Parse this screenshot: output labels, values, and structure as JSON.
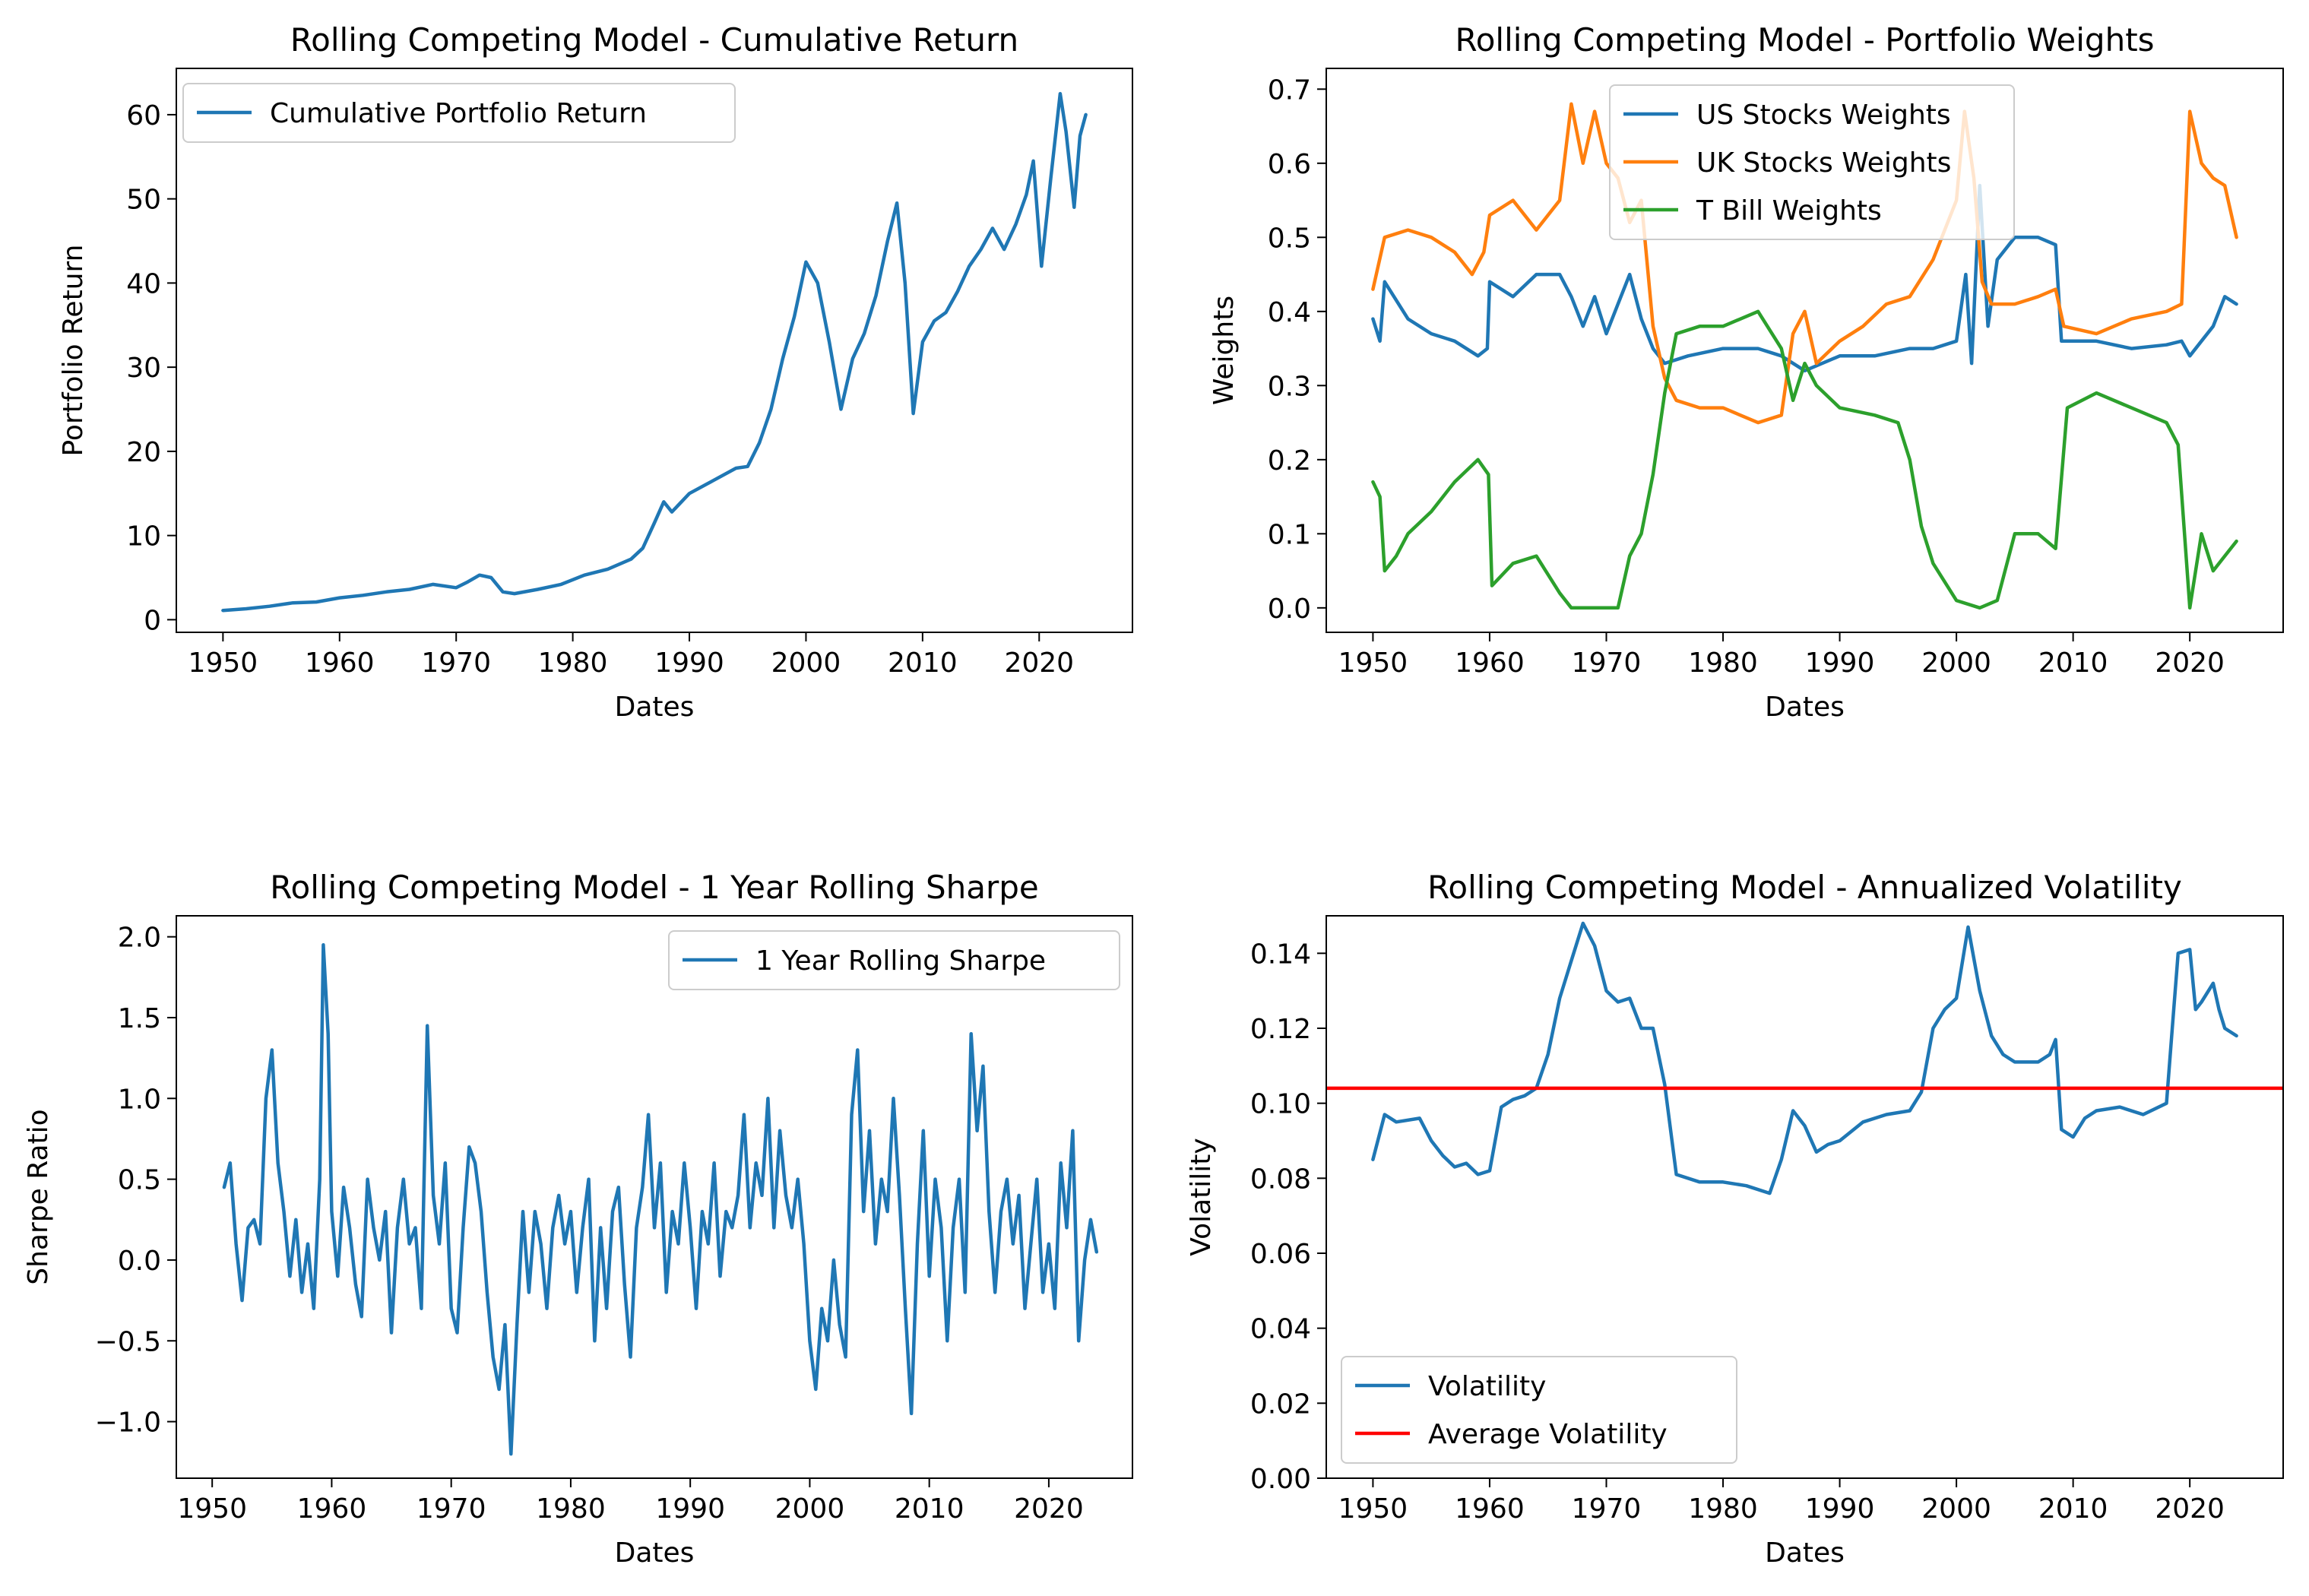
{
  "chart_data": [
    {
      "id": "tl",
      "type": "line",
      "title": "Rolling Competing Model - Cumulative Return",
      "xlabel": "Dates",
      "ylabel": "Portfolio Return",
      "xlim": [
        1946,
        2028
      ],
      "ylim": [
        -1.5,
        65.5
      ],
      "xticks": [
        1950,
        1960,
        1970,
        1980,
        1990,
        2000,
        2010,
        2020
      ],
      "yticks": [
        0,
        10,
        20,
        30,
        40,
        50,
        60
      ],
      "legend": "upper-left",
      "series": [
        {
          "name": "Cumulative Portfolio Return",
          "color": "#1f77b4",
          "x": [
            1950,
            1952,
            1954,
            1956,
            1958,
            1960,
            1962,
            1964,
            1966,
            1968,
            1970,
            1971,
            1972,
            1973,
            1974,
            1975,
            1977,
            1979,
            1981,
            1983,
            1985,
            1986,
            1987,
            1987.8,
            1988.5,
            1990,
            1992,
            1994,
            1995,
            1996,
            1997,
            1998,
            1999,
            2000,
            2001,
            2002,
            2003,
            2004,
            2005,
            2006,
            2007,
            2007.8,
            2008.5,
            2009.2,
            2010,
            2011,
            2012,
            2013,
            2014,
            2015,
            2016,
            2017,
            2018,
            2018.9,
            2019.5,
            2020.2,
            2021,
            2021.8,
            2022.3,
            2023,
            2023.5,
            2024
          ],
          "y": [
            1.1,
            1.3,
            1.6,
            2.0,
            2.1,
            2.6,
            2.9,
            3.3,
            3.6,
            4.2,
            3.8,
            4.5,
            5.3,
            5.0,
            3.3,
            3.1,
            3.6,
            4.2,
            5.3,
            6.0,
            7.2,
            8.5,
            11.5,
            14.0,
            12.8,
            15.0,
            16.5,
            18.0,
            18.2,
            21.0,
            25.0,
            31.0,
            36.0,
            42.5,
            40.0,
            33.0,
            25.0,
            31.0,
            34.0,
            38.5,
            45.0,
            49.5,
            40.0,
            24.5,
            33.0,
            35.5,
            36.5,
            39.0,
            42.0,
            44.0,
            46.5,
            44.0,
            47.0,
            50.5,
            54.5,
            42.0,
            52.5,
            62.5,
            58.0,
            49.0,
            57.5,
            60.0
          ]
        }
      ]
    },
    {
      "id": "tr",
      "type": "line",
      "title": "Rolling Competing Model - Portfolio Weights",
      "xlabel": "Dates",
      "ylabel": "Weights",
      "xlim": [
        1946,
        2028
      ],
      "ylim": [
        -0.033,
        0.728
      ],
      "xticks": [
        1950,
        1960,
        1970,
        1980,
        1990,
        2000,
        2010,
        2020
      ],
      "yticks": [
        0.0,
        0.1,
        0.2,
        0.3,
        0.4,
        0.5,
        0.6,
        0.7
      ],
      "ytickfmt": 1,
      "legend": "upper-center",
      "series": [
        {
          "name": "US Stocks Weights",
          "color": "#1f77b4",
          "x": [
            1950,
            1950.6,
            1951,
            1953,
            1955,
            1957,
            1959,
            1959.8,
            1960,
            1962,
            1964,
            1966,
            1967,
            1968,
            1969,
            1970,
            1971,
            1972,
            1973,
            1974,
            1975,
            1977,
            1980,
            1983,
            1985,
            1987,
            1990,
            1993,
            1996,
            1998,
            2000,
            2000.8,
            2001.3,
            2002,
            2002.7,
            2003.5,
            2005,
            2007,
            2008.5,
            2009,
            2012,
            2015,
            2018,
            2019.3,
            2020,
            2021,
            2022,
            2023,
            2024
          ],
          "y": [
            0.39,
            0.36,
            0.44,
            0.39,
            0.37,
            0.36,
            0.34,
            0.35,
            0.44,
            0.42,
            0.45,
            0.45,
            0.42,
            0.38,
            0.42,
            0.37,
            0.41,
            0.45,
            0.39,
            0.35,
            0.33,
            0.34,
            0.35,
            0.35,
            0.34,
            0.32,
            0.34,
            0.34,
            0.35,
            0.35,
            0.36,
            0.45,
            0.33,
            0.57,
            0.38,
            0.47,
            0.5,
            0.5,
            0.49,
            0.36,
            0.36,
            0.35,
            0.355,
            0.36,
            0.34,
            0.36,
            0.38,
            0.42,
            0.41
          ]
        },
        {
          "name": "UK Stocks Weights",
          "color": "#ff7f0e",
          "x": [
            1950,
            1951,
            1953,
            1955,
            1957,
            1958.5,
            1959.5,
            1960,
            1962,
            1964,
            1966,
            1967,
            1968,
            1969,
            1970,
            1971,
            1972,
            1973,
            1974,
            1975,
            1976,
            1978,
            1980,
            1983,
            1985,
            1986,
            1987,
            1988,
            1990,
            1992,
            1994,
            1996,
            1998,
            2000,
            2000.7,
            2001.5,
            2002.2,
            2003,
            2005,
            2007,
            2008.5,
            2009.2,
            2012,
            2015,
            2018,
            2019.3,
            2020,
            2021,
            2022,
            2023,
            2024
          ],
          "y": [
            0.43,
            0.5,
            0.51,
            0.5,
            0.48,
            0.45,
            0.48,
            0.53,
            0.55,
            0.51,
            0.55,
            0.68,
            0.6,
            0.67,
            0.6,
            0.58,
            0.52,
            0.55,
            0.38,
            0.31,
            0.28,
            0.27,
            0.27,
            0.25,
            0.26,
            0.37,
            0.4,
            0.33,
            0.36,
            0.38,
            0.41,
            0.42,
            0.47,
            0.55,
            0.67,
            0.58,
            0.44,
            0.41,
            0.41,
            0.42,
            0.43,
            0.38,
            0.37,
            0.39,
            0.4,
            0.41,
            0.67,
            0.6,
            0.58,
            0.57,
            0.5
          ]
        },
        {
          "name": " T Bill Weights",
          "color": "#2ca02c",
          "x": [
            1950,
            1950.6,
            1951,
            1952,
            1953,
            1955,
            1957,
            1959,
            1959.9,
            1960.2,
            1962,
            1964,
            1966,
            1967,
            1969,
            1971,
            1972,
            1973,
            1974,
            1975,
            1976,
            1978,
            1980,
            1983,
            1985,
            1986,
            1987,
            1988,
            1990,
            1993,
            1995,
            1996,
            1997,
            1998,
            2000,
            2002,
            2003.5,
            2005,
            2007,
            2008.5,
            2009.5,
            2012,
            2015,
            2018,
            2019,
            2020,
            2021,
            2022,
            2023,
            2024
          ],
          "y": [
            0.17,
            0.15,
            0.05,
            0.07,
            0.1,
            0.13,
            0.17,
            0.2,
            0.18,
            0.03,
            0.06,
            0.07,
            0.02,
            0.0,
            0.0,
            0.0,
            0.07,
            0.1,
            0.18,
            0.29,
            0.37,
            0.38,
            0.38,
            0.4,
            0.35,
            0.28,
            0.33,
            0.3,
            0.27,
            0.26,
            0.25,
            0.2,
            0.11,
            0.06,
            0.01,
            0.0,
            0.01,
            0.1,
            0.1,
            0.08,
            0.27,
            0.29,
            0.27,
            0.25,
            0.22,
            0.0,
            0.1,
            0.05,
            0.07,
            0.09
          ]
        }
      ]
    },
    {
      "id": "bl",
      "type": "line",
      "title": "Rolling Competing Model - 1 Year Rolling Sharpe",
      "xlabel": "Dates",
      "ylabel": "Sharpe Ratio",
      "xlim": [
        1947,
        2027
      ],
      "ylim": [
        -1.35,
        2.13
      ],
      "xticks": [
        1950,
        1960,
        1970,
        1980,
        1990,
        2000,
        2010,
        2020
      ],
      "yticks": [
        -1.0,
        -0.5,
        0.0,
        0.5,
        1.0,
        1.5,
        2.0
      ],
      "ytickfmt": 1,
      "legend": "upper-right",
      "series": [
        {
          "name": "1 Year Rolling Sharpe",
          "color": "#1f77b4",
          "x": [
            1951,
            1951.5,
            1952,
            1952.5,
            1953,
            1953.5,
            1954,
            1954.5,
            1955,
            1955.5,
            1956,
            1956.5,
            1957,
            1957.5,
            1958,
            1958.5,
            1959,
            1959.3,
            1959.7,
            1960,
            1960.5,
            1961,
            1961.5,
            1962,
            1962.5,
            1963,
            1963.5,
            1964,
            1964.5,
            1965,
            1965.5,
            1966,
            1966.5,
            1967,
            1967.5,
            1968,
            1968.5,
            1969,
            1969.5,
            1970,
            1970.5,
            1971,
            1971.5,
            1972,
            1972.5,
            1973,
            1973.5,
            1974,
            1974.5,
            1975,
            1975.5,
            1976,
            1976.5,
            1977,
            1977.5,
            1978,
            1978.5,
            1979,
            1979.5,
            1980,
            1980.5,
            1981,
            1981.5,
            1982,
            1982.5,
            1983,
            1983.5,
            1984,
            1984.5,
            1985,
            1985.5,
            1986,
            1986.5,
            1987,
            1987.5,
            1988,
            1988.5,
            1989,
            1989.5,
            1990,
            1990.5,
            1991,
            1991.5,
            1992,
            1992.5,
            1993,
            1993.5,
            1994,
            1994.5,
            1995,
            1995.5,
            1996,
            1996.5,
            1997,
            1997.5,
            1998,
            1998.5,
            1999,
            1999.5,
            2000,
            2000.5,
            2001,
            2001.5,
            2002,
            2002.5,
            2003,
            2003.5,
            2004,
            2004.5,
            2005,
            2005.5,
            2006,
            2006.5,
            2007,
            2007.5,
            2008,
            2008.5,
            2009,
            2009.5,
            2010,
            2010.5,
            2011,
            2011.5,
            2012,
            2012.5,
            2013,
            2013.5,
            2014,
            2014.5,
            2015,
            2015.5,
            2016,
            2016.5,
            2017,
            2017.5,
            2018,
            2018.5,
            2019,
            2019.5,
            2020,
            2020.5,
            2021,
            2021.5,
            2022,
            2022.5,
            2023,
            2023.5,
            2024
          ],
          "y": [
            0.45,
            0.6,
            0.1,
            -0.25,
            0.2,
            0.25,
            0.1,
            1.0,
            1.3,
            0.6,
            0.3,
            -0.1,
            0.25,
            -0.2,
            0.1,
            -0.3,
            0.5,
            1.95,
            1.4,
            0.3,
            -0.1,
            0.45,
            0.2,
            -0.15,
            -0.35,
            0.5,
            0.2,
            0.0,
            0.3,
            -0.45,
            0.2,
            0.5,
            0.1,
            0.2,
            -0.3,
            1.45,
            0.4,
            0.1,
            0.6,
            -0.3,
            -0.45,
            0.2,
            0.7,
            0.6,
            0.3,
            -0.2,
            -0.6,
            -0.8,
            -0.4,
            -1.2,
            -0.4,
            0.3,
            -0.2,
            0.3,
            0.1,
            -0.3,
            0.2,
            0.4,
            0.1,
            0.3,
            -0.2,
            0.2,
            0.5,
            -0.5,
            0.2,
            -0.3,
            0.3,
            0.45,
            -0.15,
            -0.6,
            0.2,
            0.45,
            0.9,
            0.2,
            0.6,
            -0.2,
            0.3,
            0.1,
            0.6,
            0.2,
            -0.3,
            0.3,
            0.1,
            0.6,
            -0.1,
            0.3,
            0.2,
            0.4,
            0.9,
            0.2,
            0.6,
            0.4,
            1.0,
            0.2,
            0.8,
            0.4,
            0.2,
            0.5,
            0.1,
            -0.5,
            -0.8,
            -0.3,
            -0.5,
            0.0,
            -0.4,
            -0.6,
            0.9,
            1.3,
            0.3,
            0.8,
            0.1,
            0.5,
            0.3,
            1.0,
            0.4,
            -0.3,
            -0.95,
            0.1,
            0.8,
            -0.1,
            0.5,
            0.2,
            -0.5,
            0.2,
            0.5,
            -0.2,
            1.4,
            0.8,
            1.2,
            0.3,
            -0.2,
            0.3,
            0.5,
            0.1,
            0.4,
            -0.3,
            0.1,
            0.5,
            -0.2,
            0.1,
            -0.3,
            0.6,
            0.2,
            0.8,
            -0.5,
            0.0,
            0.25,
            0.05
          ]
        }
      ]
    },
    {
      "id": "br",
      "type": "line",
      "title": "Rolling Competing Model - Annualized Volatility",
      "xlabel": "Dates",
      "ylabel": "Volatility",
      "xlim": [
        1946,
        2028
      ],
      "ylim": [
        0.0,
        0.15
      ],
      "xticks": [
        1950,
        1960,
        1970,
        1980,
        1990,
        2000,
        2010,
        2020
      ],
      "yticks": [
        0.0,
        0.02,
        0.04,
        0.06,
        0.08,
        0.1,
        0.12,
        0.14
      ],
      "ytickfmt": 2,
      "legend": "lower-left",
      "series": [
        {
          "name": "Volatility",
          "color": "#1f77b4",
          "x": [
            1950,
            1951,
            1952,
            1954,
            1955,
            1956,
            1957,
            1958,
            1959,
            1960,
            1961,
            1962,
            1963,
            1964,
            1965,
            1966,
            1967,
            1968,
            1969,
            1970,
            1971,
            1972,
            1973,
            1974,
            1975,
            1976,
            1978,
            1980,
            1982,
            1984,
            1985,
            1986,
            1987,
            1988,
            1989,
            1990,
            1992,
            1994,
            1996,
            1997,
            1998,
            1999,
            2000,
            2001,
            2002,
            2003,
            2004,
            2005,
            2007,
            2008,
            2008.5,
            2009,
            2010,
            2011,
            2012,
            2014,
            2016,
            2018,
            2018.5,
            2019,
            2020,
            2020.5,
            2021,
            2022,
            2022.5,
            2023,
            2024
          ],
          "y": [
            0.085,
            0.097,
            0.095,
            0.096,
            0.09,
            0.086,
            0.083,
            0.084,
            0.081,
            0.082,
            0.099,
            0.101,
            0.102,
            0.104,
            0.113,
            0.128,
            0.138,
            0.148,
            0.142,
            0.13,
            0.127,
            0.128,
            0.12,
            0.12,
            0.105,
            0.081,
            0.079,
            0.079,
            0.078,
            0.076,
            0.085,
            0.098,
            0.094,
            0.087,
            0.089,
            0.09,
            0.095,
            0.097,
            0.098,
            0.103,
            0.12,
            0.125,
            0.128,
            0.147,
            0.13,
            0.118,
            0.113,
            0.111,
            0.111,
            0.113,
            0.117,
            0.093,
            0.091,
            0.096,
            0.098,
            0.099,
            0.097,
            0.1,
            0.12,
            0.14,
            0.141,
            0.125,
            0.127,
            0.132,
            0.125,
            0.12,
            0.118
          ]
        },
        {
          "name": "Average Volatility",
          "color": "#ff0000",
          "hline": 0.104
        }
      ]
    }
  ]
}
